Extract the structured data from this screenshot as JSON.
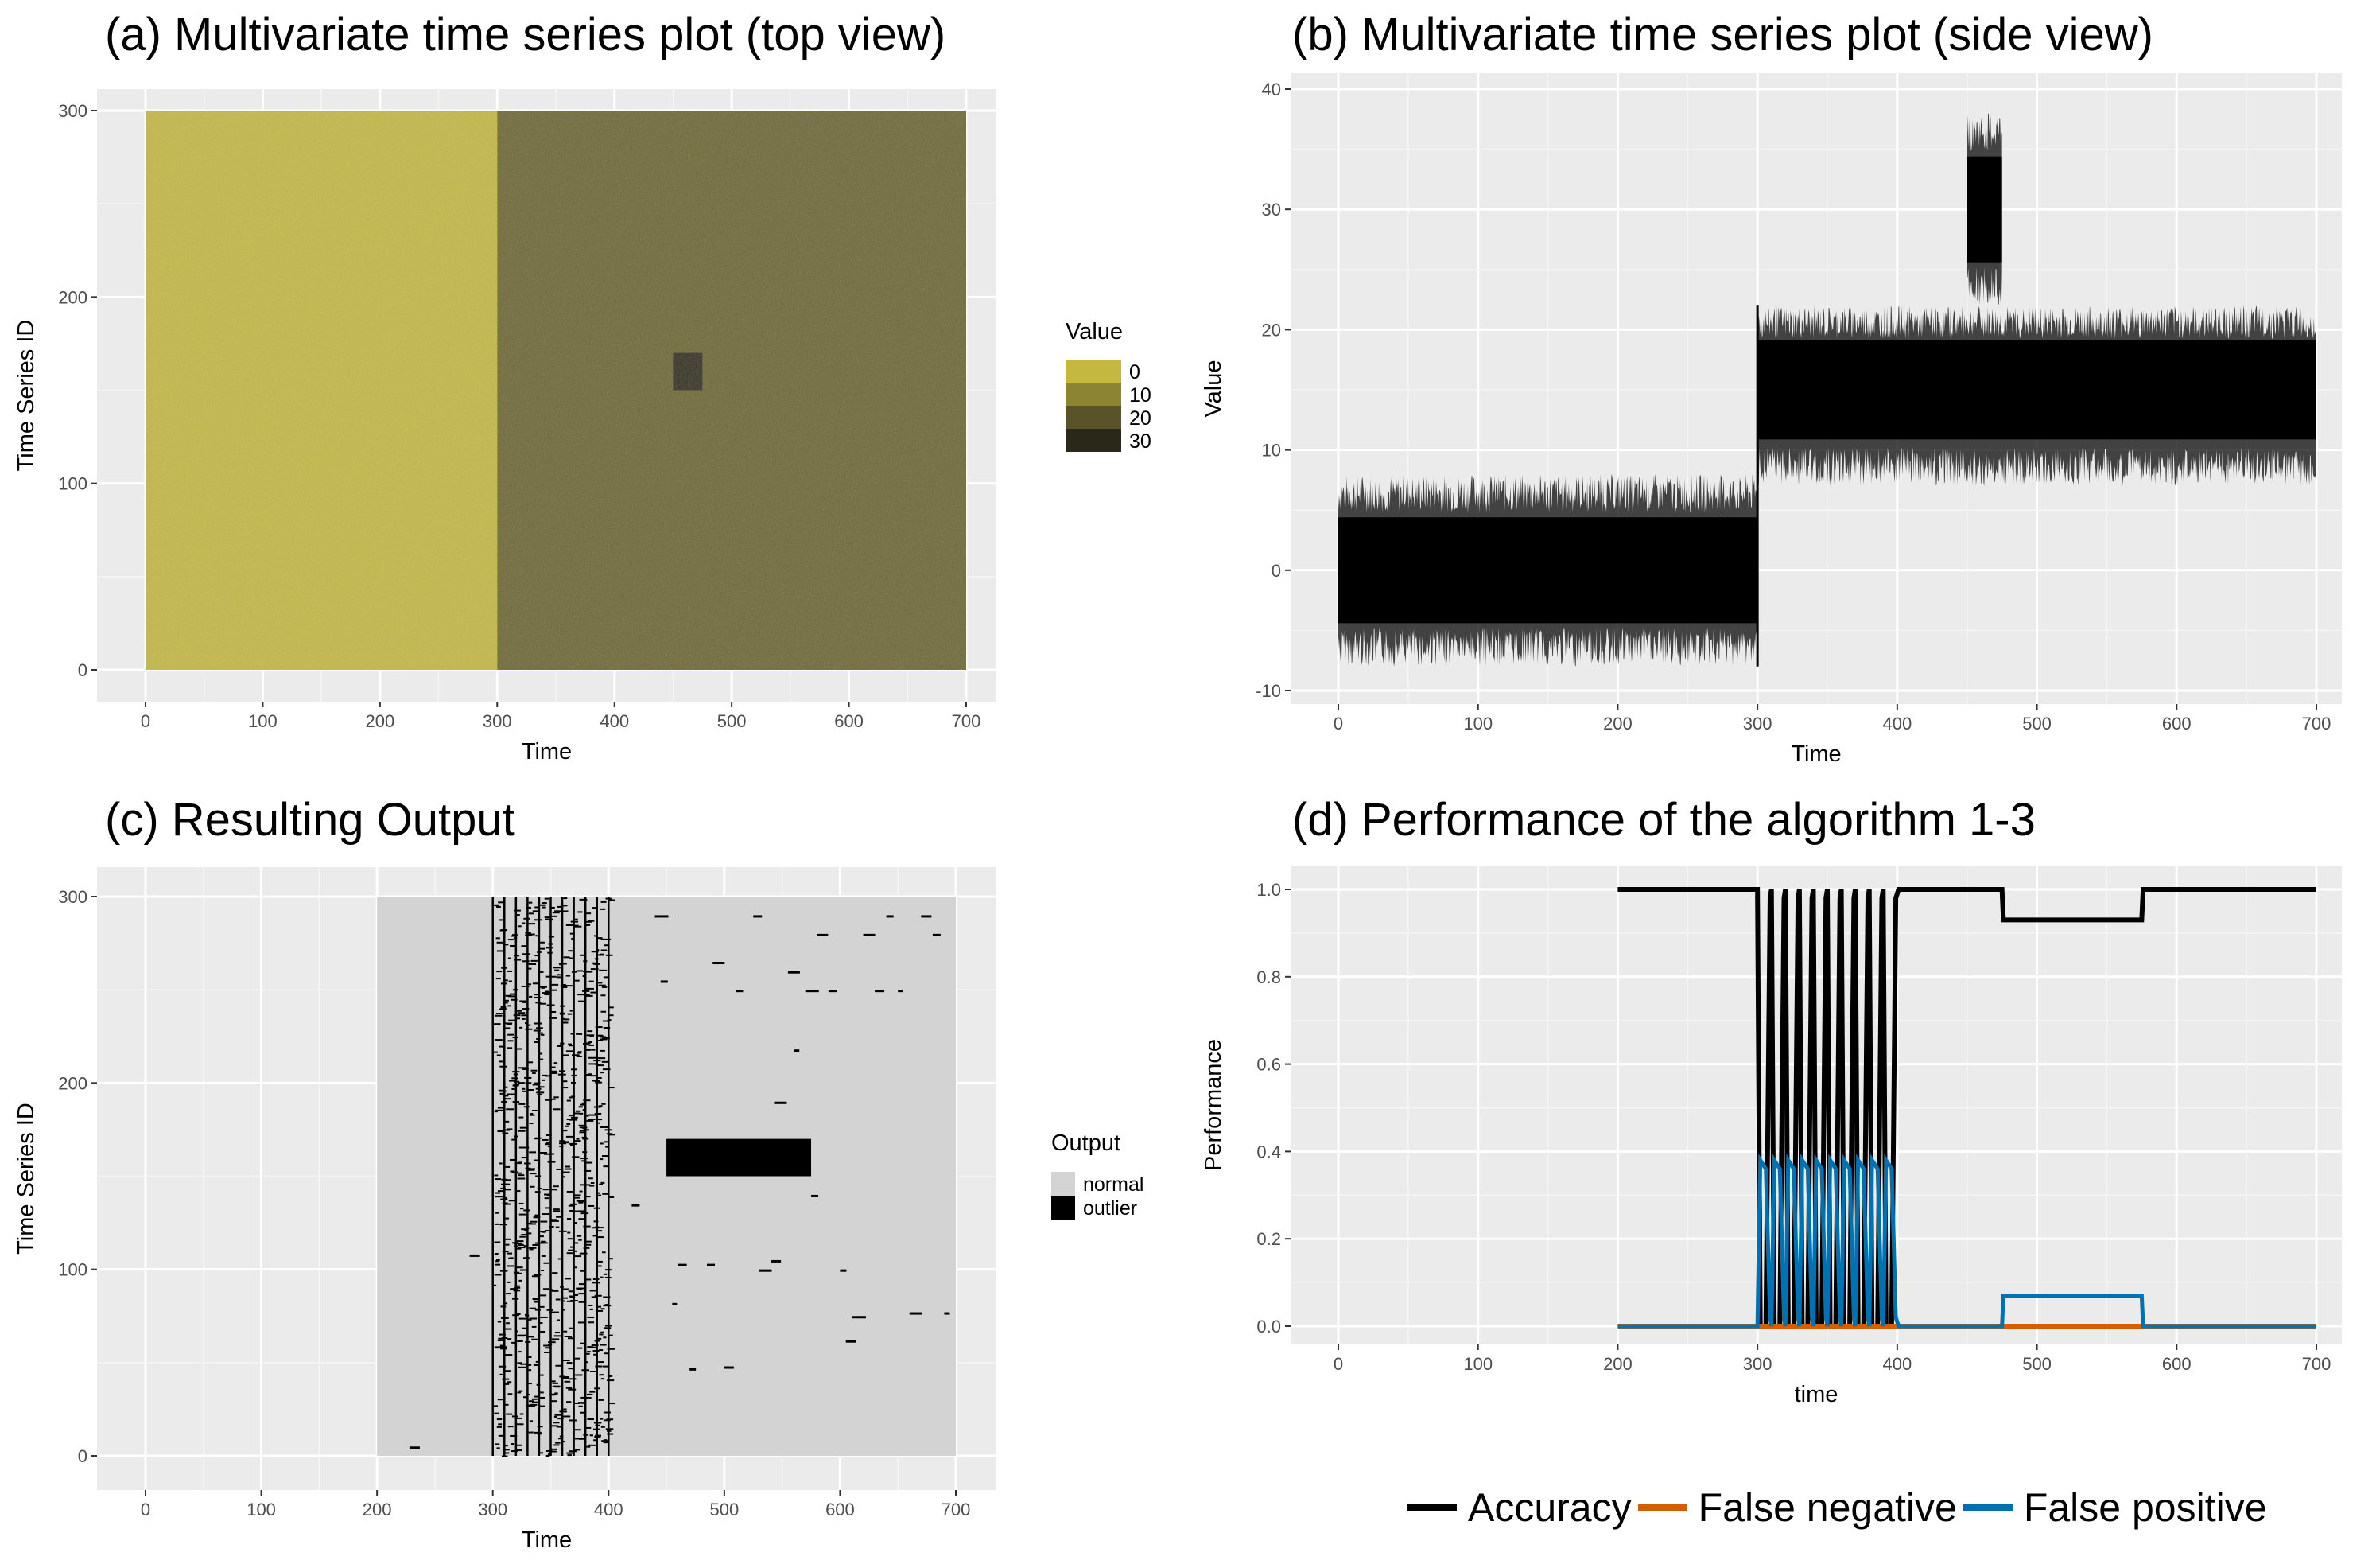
{
  "panels": {
    "a": {
      "title": "(a) Multivariate time series plot (top view)",
      "xlabel": "Time",
      "ylabel": "Time Series ID",
      "xticks": [
        "0",
        "100",
        "200",
        "300",
        "400",
        "500",
        "600",
        "700"
      ],
      "yticks": [
        "0",
        "100",
        "200",
        "300"
      ],
      "legend_title": "Value",
      "legend_labels": [
        "0",
        "10",
        "20",
        "30"
      ],
      "legend_colors": [
        "#c4b840",
        "#8c8433",
        "#5a5228",
        "#2a2818"
      ]
    },
    "b": {
      "title": "(b)  Multivariate time series plot (side view)",
      "xlabel": "Time",
      "ylabel": "Value",
      "xticks": [
        "0",
        "100",
        "200",
        "300",
        "400",
        "500",
        "600",
        "700"
      ],
      "yticks": [
        "-10",
        "0",
        "10",
        "20",
        "30",
        "40"
      ]
    },
    "c": {
      "title": "(c) Resulting Output",
      "xlabel": "Time",
      "ylabel": "Time Series ID",
      "xticks": [
        "0",
        "100",
        "200",
        "300",
        "400",
        "500",
        "600",
        "700"
      ],
      "yticks": [
        "0",
        "100",
        "200",
        "300"
      ],
      "legend_title": "Output",
      "legend_labels": [
        "normal",
        "outlier"
      ],
      "legend_colors": [
        "#d3d3d3",
        "#000000"
      ]
    },
    "d": {
      "title": "(d) Performance of the algorithm 1-3",
      "xlabel": "time",
      "ylabel": "Performance",
      "xticks": [
        "0",
        "100",
        "200",
        "300",
        "400",
        "500",
        "600",
        "700"
      ],
      "yticks": [
        "0.0",
        "0.2",
        "0.4",
        "0.6",
        "0.8",
        "1.0"
      ]
    }
  },
  "bottom_legend": [
    {
      "label": "Accuracy",
      "color": "#000000"
    },
    {
      "label": "False negative",
      "color": "#d55e00"
    },
    {
      "label": "False positive",
      "color": "#0072b2"
    }
  ],
  "chart_data": [
    {
      "type": "heatmap",
      "title": "(a) Multivariate time series plot (top view)",
      "xlabel": "Time",
      "ylabel": "Time Series ID",
      "xlim": [
        0,
        700
      ],
      "ylim": [
        0,
        300
      ],
      "legend": "Value",
      "regions": [
        {
          "x": [
            0,
            300
          ],
          "y": [
            0,
            300
          ],
          "value": 0
        },
        {
          "x": [
            300,
            700
          ],
          "y": [
            0,
            300
          ],
          "value": 15
        },
        {
          "x": [
            450,
            475
          ],
          "y": [
            150,
            170
          ],
          "value": 30
        }
      ]
    },
    {
      "type": "line",
      "title": "(b)  Multivariate time series plot (side view)",
      "xlabel": "Time",
      "ylabel": "Value",
      "xlim": [
        0,
        700
      ],
      "ylim": [
        -10,
        40
      ],
      "bands": [
        {
          "x": [
            0,
            300
          ],
          "mean": 0,
          "low": -8,
          "high": 8
        },
        {
          "x": [
            300,
            700
          ],
          "mean": 15,
          "low": 7,
          "high": 22
        },
        {
          "x": [
            450,
            475
          ],
          "mean": 30,
          "low": 22,
          "high": 38
        }
      ]
    },
    {
      "type": "heatmap",
      "title": "(c) Resulting Output",
      "xlabel": "Time",
      "ylabel": "Time Series ID",
      "xlim": [
        0,
        700
      ],
      "ylim": [
        0,
        300
      ],
      "legend": "Output",
      "normal_region": {
        "x": [
          200,
          700
        ],
        "y": [
          0,
          300
        ]
      },
      "outlier_blocks": [
        {
          "x": [
            450,
            575
          ],
          "y": [
            150,
            170
          ]
        }
      ],
      "outlier_stripe_region": {
        "x": [
          300,
          400
        ],
        "y": [
          0,
          300
        ]
      }
    },
    {
      "type": "line",
      "title": "(d) Performance of the algorithm 1-3",
      "xlabel": "time",
      "ylabel": "Performance",
      "xlim": [
        0,
        700
      ],
      "ylim": [
        0,
        1
      ],
      "series": [
        {
          "name": "Accuracy",
          "x": [
            200,
            299,
            300,
            475,
            476,
            575,
            576,
            700
          ],
          "y": [
            1.0,
            1.0,
            0.5,
            1.0,
            0.93,
            0.93,
            1.0,
            1.0
          ]
        },
        {
          "name": "False negative",
          "x": [
            200,
            700
          ],
          "y": [
            0.0,
            0.0
          ]
        },
        {
          "name": "False positive",
          "x": [
            200,
            299,
            300,
            400,
            401,
            475,
            476,
            575,
            576,
            700
          ],
          "y": [
            0.0,
            0.0,
            0.38,
            0.38,
            0.0,
            0.0,
            0.07,
            0.07,
            0.0,
            0.0
          ]
        }
      ]
    }
  ]
}
